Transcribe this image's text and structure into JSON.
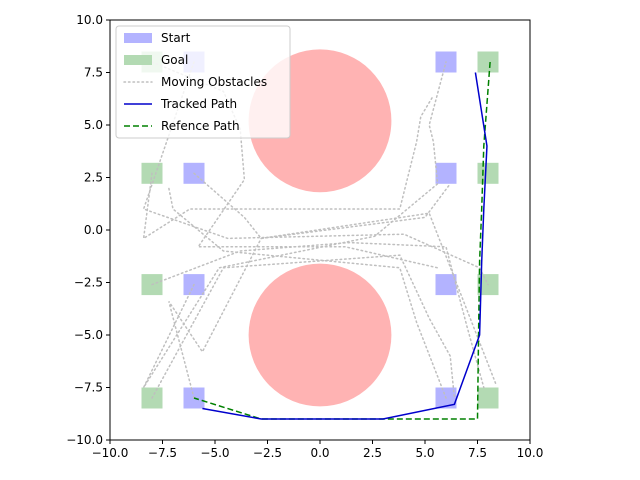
{
  "chart_data": {
    "type": "scatter",
    "xlim": [
      -10,
      10
    ],
    "ylim": [
      -10,
      10
    ],
    "xticks": [
      "−10.0",
      "−7.5",
      "−5.0",
      "−2.5",
      "0.0",
      "2.5",
      "5.0",
      "7.5",
      "10.0"
    ],
    "yticks": [
      "−10.0",
      "−7.5",
      "−5.0",
      "−2.5",
      "0.0",
      "2.5",
      "5.0",
      "7.5",
      "10.0"
    ],
    "xtick_values": [
      -10,
      -7.5,
      -5,
      -2.5,
      0,
      2.5,
      5,
      7.5,
      10
    ],
    "ytick_values": [
      -10,
      -7.5,
      -5,
      -2.5,
      0,
      2.5,
      5,
      7.5,
      10
    ],
    "grid": false,
    "legend_position": "top-left",
    "colors": {
      "start": "#b3b3ff",
      "goal": "#b3dab3",
      "obstacle": "#ffb3b3",
      "moving": "#bfbfbf",
      "tracked": "#0000cc",
      "reference": "#008000"
    },
    "legend": [
      {
        "label": "Start",
        "kind": "start"
      },
      {
        "label": "Goal",
        "kind": "goal"
      },
      {
        "label": "Moving Obstacles",
        "kind": "moving"
      },
      {
        "label": "Tracked Path",
        "kind": "tracked"
      },
      {
        "label": "Refence Path",
        "kind": "reference"
      }
    ],
    "static_obstacles": [
      {
        "center": [
          0,
          5.2
        ],
        "radius": 3.4
      },
      {
        "center": [
          0,
          -5.0
        ],
        "radius": 3.4
      }
    ],
    "square_half_size": 0.5,
    "start_points": [
      [
        -6.0,
        8.0
      ],
      [
        -6.0,
        2.7
      ],
      [
        -6.0,
        -2.6
      ],
      [
        -6.0,
        -8.0
      ],
      [
        6.0,
        8.0
      ],
      [
        6.0,
        2.7
      ],
      [
        6.0,
        -2.6
      ],
      [
        6.0,
        -8.0
      ]
    ],
    "goal_points": [
      [
        -8.0,
        8.0
      ],
      [
        -8.0,
        2.7
      ],
      [
        -8.0,
        -2.6
      ],
      [
        -8.0,
        -8.0
      ],
      [
        8.0,
        8.0
      ],
      [
        8.0,
        2.7
      ],
      [
        8.0,
        -2.6
      ],
      [
        8.0,
        -8.0
      ]
    ],
    "moving_obstacles": [
      [
        [
          -6.0,
          8.0
        ],
        [
          -8.4,
          1.0
        ],
        [
          -4.4,
          -0.4
        ],
        [
          4.0,
          -0.2
        ],
        [
          7.6,
          -1.8
        ],
        [
          8.0,
          -2.6
        ]
      ],
      [
        [
          -6.0,
          2.7
        ],
        [
          -3.6,
          0.6
        ],
        [
          -2.8,
          -0.4
        ],
        [
          5.0,
          0.6
        ],
        [
          6.2,
          2.2
        ]
      ],
      [
        [
          -6.0,
          -2.6
        ],
        [
          -8.4,
          -7.5
        ],
        [
          -4.8,
          -1.8
        ],
        [
          2.6,
          -0.3
        ],
        [
          5.6,
          2.2
        ],
        [
          5.4,
          4.2
        ],
        [
          5.2,
          5.0
        ],
        [
          6.0,
          8.0
        ]
      ],
      [
        [
          -8.0,
          8.0
        ],
        [
          -4.6,
          6.6
        ],
        [
          -3.8,
          4.8
        ],
        [
          -3.6,
          2.4
        ],
        [
          -5.8,
          -0.8
        ],
        [
          1.2,
          -0.8
        ],
        [
          5.6,
          -1.8
        ]
      ],
      [
        [
          -8.0,
          2.7
        ],
        [
          -8.4,
          -0.4
        ],
        [
          -6.2,
          1.0
        ],
        [
          3.8,
          1.0
        ],
        [
          4.6,
          4.2
        ],
        [
          4.8,
          5.4
        ],
        [
          5.4,
          6.4
        ]
      ],
      [
        [
          -8.0,
          -2.6
        ],
        [
          -3.8,
          -1.0
        ],
        [
          1.4,
          -0.6
        ],
        [
          6.0,
          -0.8
        ],
        [
          7.0,
          -4.6
        ],
        [
          7.8,
          -7.5
        ]
      ],
      [
        [
          -8.0,
          -8.0
        ],
        [
          -4.6,
          -1.8
        ],
        [
          3.8,
          -1.2
        ],
        [
          5.2,
          -4.2
        ],
        [
          6.2,
          -6.0
        ],
        [
          6.4,
          -8.0
        ]
      ],
      [
        [
          6.0,
          -8.0
        ],
        [
          4.6,
          -4.4
        ],
        [
          3.8,
          -1.8
        ],
        [
          -4.6,
          -1.0
        ],
        [
          -7.0,
          1.0
        ],
        [
          -7.2,
          2.0
        ]
      ],
      [
        [
          -6.0,
          -8.0
        ],
        [
          -7.2,
          -3.4
        ],
        [
          -5.6,
          -5.8
        ],
        [
          -2.8,
          -0.4
        ],
        [
          5.2,
          0.8
        ],
        [
          8.4,
          -7.4
        ]
      ]
    ],
    "tracked_path": {
      "x": [
        7.4,
        7.95,
        7.8,
        7.7,
        7.6,
        6.4,
        3.0,
        -2.8,
        -5.6
      ],
      "y": [
        7.5,
        4.0,
        1.0,
        -1.5,
        -5.0,
        -8.3,
        -9.0,
        -9.0,
        -8.5
      ]
    },
    "reference_path": {
      "x": [
        8.1,
        7.8,
        7.7,
        7.6,
        7.55,
        7.5,
        3.0,
        -2.8,
        -6.0
      ],
      "y": [
        8.0,
        4.0,
        1.0,
        -1.5,
        -5.0,
        -9.0,
        -9.0,
        -9.0,
        -8.0
      ]
    }
  }
}
